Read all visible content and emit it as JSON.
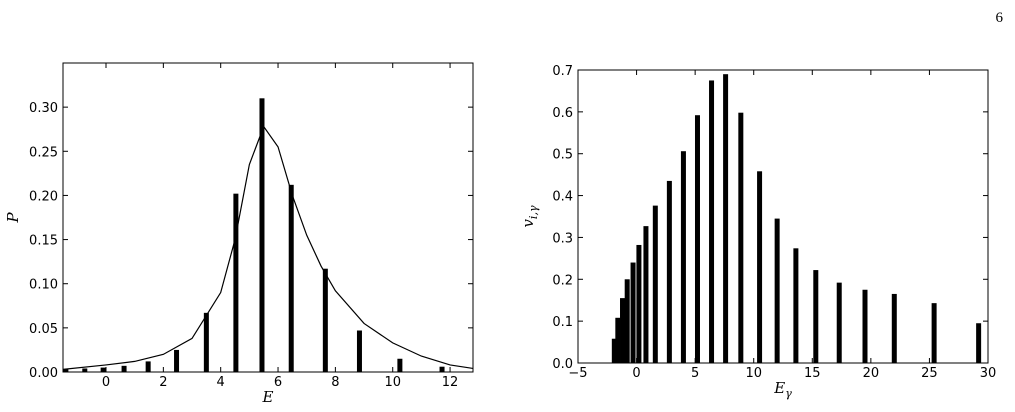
{
  "page_number": "6",
  "chart_data": [
    {
      "type": "bar",
      "xlabel": "E",
      "ylabel": "P",
      "x": [
        -1.4,
        -0.74,
        -0.1,
        0.63,
        1.47,
        2.46,
        3.5,
        4.53,
        5.44,
        6.46,
        7.65,
        8.84,
        10.25,
        11.72
      ],
      "values": [
        0.003,
        0.004,
        0.005,
        0.007,
        0.012,
        0.025,
        0.067,
        0.202,
        0.31,
        0.212,
        0.117,
        0.047,
        0.015,
        0.006
      ],
      "color": "#000000",
      "line": {
        "x": [
          -1.5,
          0,
          1,
          2,
          3,
          4,
          4.5,
          5,
          5.5,
          6,
          6.5,
          7,
          7.5,
          8,
          9,
          10,
          11,
          12,
          12.8
        ],
        "values": [
          0.003,
          0.008,
          0.012,
          0.02,
          0.038,
          0.09,
          0.15,
          0.235,
          0.278,
          0.255,
          0.2,
          0.155,
          0.12,
          0.092,
          0.055,
          0.033,
          0.018,
          0.008,
          0.004
        ],
        "color": "#000000"
      },
      "xlim": [
        -1.5,
        12.8
      ],
      "ylim": [
        0,
        0.35
      ],
      "xticks": [
        0,
        2,
        4,
        6,
        8,
        10,
        12
      ],
      "yticks": [
        {
          "value": 0,
          "label": "0.00"
        },
        {
          "value": 0.05,
          "label": "0.05"
        },
        {
          "value": 0.1,
          "label": "0.10"
        },
        {
          "value": 0.15,
          "label": "0.15"
        },
        {
          "value": 0.2,
          "label": "0.20"
        },
        {
          "value": 0.25,
          "label": "0.25"
        },
        {
          "value": 0.3,
          "label": "0.30"
        }
      ]
    },
    {
      "type": "bar",
      "xlabel": "E",
      "xlabel_sub": "γ",
      "ylabel": "v",
      "ylabel_sub": "i,γ",
      "x": [
        -1.9,
        -1.6,
        -1.2,
        -0.8,
        -0.3,
        0.2,
        0.8,
        1.6,
        2.8,
        4,
        5.2,
        6.4,
        7.6,
        8.9,
        10.5,
        12,
        13.6,
        15.3,
        17.3,
        19.5,
        22,
        25.4,
        29.2
      ],
      "values": [
        0.058,
        0.108,
        0.155,
        0.2,
        0.24,
        0.282,
        0.327,
        0.376,
        0.435,
        0.506,
        0.592,
        0.675,
        0.69,
        0.598,
        0.458,
        0.345,
        0.274,
        0.222,
        0.192,
        0.175,
        0.165,
        0.143,
        0.095
      ],
      "color": "#000000",
      "xlim": [
        -5,
        30
      ],
      "ylim": [
        0,
        0.7
      ],
      "xticks": [
        {
          "value": -5,
          "label": "−5"
        },
        0,
        5,
        10,
        15,
        20,
        25,
        30
      ],
      "yticks": [
        {
          "value": 0,
          "label": "0.0"
        },
        {
          "value": 0.1,
          "label": "0.1"
        },
        {
          "value": 0.2,
          "label": "0.2"
        },
        {
          "value": 0.3,
          "label": "0.3"
        },
        {
          "value": 0.4,
          "label": "0.4"
        },
        {
          "value": 0.5,
          "label": "0.5"
        },
        {
          "value": 0.6,
          "label": "0.6"
        },
        {
          "value": 0.7,
          "label": "0.7"
        }
      ]
    }
  ]
}
